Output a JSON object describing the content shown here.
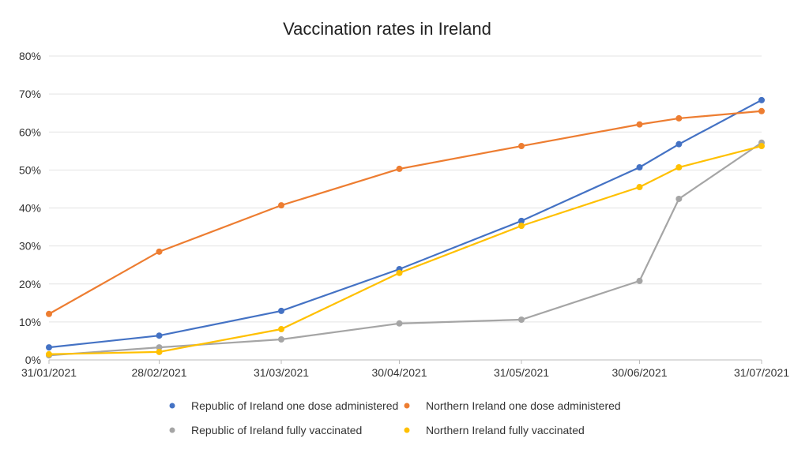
{
  "chart_data": {
    "type": "line",
    "title": "Vaccination rates in Ireland",
    "xlabel": "",
    "ylabel": "",
    "ylim": [
      0,
      80
    ],
    "y_ticks": [
      "0%",
      "10%",
      "20%",
      "30%",
      "40%",
      "50%",
      "60%",
      "70%",
      "80%"
    ],
    "x_ticks": [
      "31/01/2021",
      "28/02/2021",
      "31/03/2021",
      "30/04/2021",
      "31/05/2021",
      "30/06/2021",
      "31/07/2021"
    ],
    "x_tick_days": [
      0,
      28,
      59,
      89,
      120,
      150,
      181
    ],
    "x_days": [
      0,
      28,
      59,
      89,
      120,
      150,
      160,
      181
    ],
    "grid": true,
    "legend_position": "bottom",
    "series": [
      {
        "name": "Republic of Ireland one dose administered",
        "color": "#4472C4",
        "values": [
          3.3,
          6.4,
          12.9,
          23.9,
          36.6,
          50.7,
          56.8,
          68.4
        ]
      },
      {
        "name": "Northern Ireland one dose administered",
        "color": "#ED7D31",
        "values": [
          12.1,
          28.5,
          40.7,
          50.3,
          56.3,
          62.0,
          63.6,
          65.5
        ]
      },
      {
        "name": "Republic of Ireland fully vaccinated",
        "color": "#A5A5A5",
        "values": [
          1.2,
          3.3,
          5.4,
          9.6,
          10.6,
          20.8,
          42.4,
          57.2
        ]
      },
      {
        "name": "Northern Ireland fully vaccinated",
        "color": "#FFC000",
        "values": [
          1.5,
          2.1,
          8.1,
          22.9,
          35.3,
          45.5,
          50.7,
          56.3
        ]
      }
    ]
  }
}
